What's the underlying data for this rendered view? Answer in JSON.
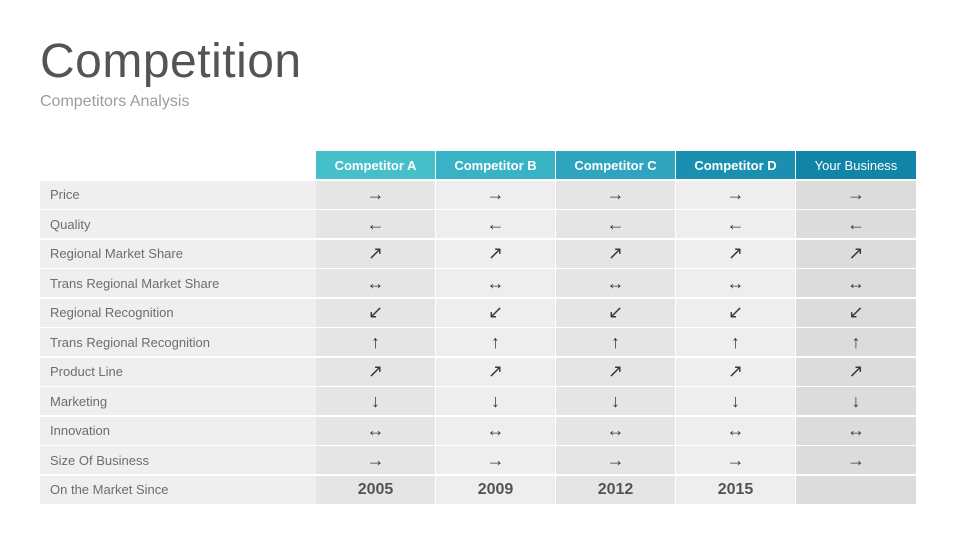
{
  "title": "Competition",
  "subtitle": "Competitors Analysis",
  "columns": [
    "Competitor A",
    "Competitor B",
    "Competitor C",
    "Competitor D",
    "Your Business"
  ],
  "rows": [
    {
      "label": "Price",
      "values": [
        "→",
        "→",
        "→",
        "→",
        "→"
      ],
      "icon": "arrow-right-icon"
    },
    {
      "label": "Quality",
      "values": [
        "←",
        "←",
        "←",
        "←",
        "←"
      ],
      "icon": "arrow-left-icon"
    },
    {
      "label": "Regional Market Share",
      "values": [
        "↗",
        "↗",
        "↗",
        "↗",
        "↗"
      ],
      "icon": "arrow-up-right-icon"
    },
    {
      "label": "Trans Regional Market Share",
      "values": [
        "↔",
        "↔",
        "↔",
        "↔",
        "↔"
      ],
      "icon": "arrow-left-right-icon"
    },
    {
      "label": "Regional Recognition",
      "values": [
        "↙",
        "↙",
        "↙",
        "↙",
        "↙"
      ],
      "icon": "arrow-down-left-icon"
    },
    {
      "label": "Trans Regional Recognition",
      "values": [
        "↑",
        "↑",
        "↑",
        "↑",
        "↑"
      ],
      "icon": "arrow-up-icon"
    },
    {
      "label": "Product Line",
      "values": [
        "↗",
        "↗",
        "↗",
        "↗",
        "↗"
      ],
      "icon": "arrow-up-right-icon"
    },
    {
      "label": "Marketing",
      "values": [
        "↓",
        "↓",
        "↓",
        "↓",
        "↓"
      ],
      "icon": "arrow-down-icon"
    },
    {
      "label": "Innovation",
      "values": [
        "↔",
        "↔",
        "↔",
        "↔",
        "↔"
      ],
      "icon": "arrow-left-right-icon"
    },
    {
      "label": "Size Of Business",
      "values": [
        "→",
        "→",
        "→",
        "→",
        "→"
      ],
      "icon": "arrow-right-icon"
    },
    {
      "label": "On the Market Since",
      "values": [
        "2005",
        "2009",
        "2012",
        "2015",
        ""
      ],
      "icon": ""
    }
  ],
  "colors": {
    "header": [
      "#45bfc9",
      "#38b2c5",
      "#2ea4bf",
      "#1b8fb0",
      "#1185a8"
    ]
  }
}
